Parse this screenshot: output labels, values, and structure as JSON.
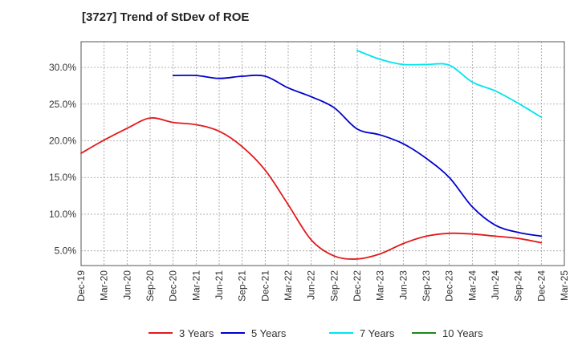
{
  "chart_data": {
    "type": "line",
    "title": "[3727]  Trend of StDev of ROE",
    "xlabel": "",
    "ylabel": "",
    "x": [
      "Dec-19",
      "Mar-20",
      "Jun-20",
      "Sep-20",
      "Dec-20",
      "Mar-21",
      "Jun-21",
      "Sep-21",
      "Dec-21",
      "Mar-22",
      "Jun-22",
      "Sep-22",
      "Dec-22",
      "Mar-23",
      "Jun-23",
      "Sep-23",
      "Dec-23",
      "Mar-24",
      "Jun-24",
      "Sep-24",
      "Dec-24"
    ],
    "x_ticks": [
      "Dec-19",
      "Mar-20",
      "Jun-20",
      "Sep-20",
      "Dec-20",
      "Mar-21",
      "Jun-21",
      "Sep-21",
      "Dec-21",
      "Mar-22",
      "Jun-22",
      "Sep-22",
      "Dec-22",
      "Mar-23",
      "Jun-23",
      "Sep-23",
      "Dec-23",
      "Mar-24",
      "Jun-24",
      "Sep-24",
      "Dec-24",
      "Mar-25"
    ],
    "y_ticks": [
      "5.0%",
      "10.0%",
      "15.0%",
      "20.0%",
      "25.0%",
      "30.0%"
    ],
    "ylim": [
      3.0,
      33.5
    ],
    "grid": true,
    "legend_position": "bottom",
    "series": [
      {
        "name": "3 Years",
        "color": "#e31a1c",
        "values": [
          18.3,
          20.1,
          21.7,
          23.1,
          22.5,
          22.2,
          21.3,
          19.2,
          16.0,
          11.3,
          6.5,
          4.3,
          3.9,
          4.6,
          6.0,
          7.0,
          7.4,
          7.3,
          7.0,
          6.7,
          6.1
        ]
      },
      {
        "name": "5 Years",
        "color": "#0000cc",
        "values": [
          null,
          null,
          null,
          null,
          28.9,
          28.9,
          28.5,
          28.8,
          28.8,
          27.2,
          26.0,
          24.5,
          21.6,
          20.8,
          19.6,
          17.6,
          15.0,
          11.0,
          8.5,
          7.5,
          7.0
        ]
      },
      {
        "name": "7 Years",
        "color": "#00e5ee",
        "values": [
          null,
          null,
          null,
          null,
          null,
          null,
          null,
          null,
          null,
          null,
          null,
          null,
          32.3,
          31.1,
          30.4,
          30.4,
          30.3,
          28.0,
          26.8,
          25.1,
          23.2
        ]
      },
      {
        "name": "10 Years",
        "color": "#1a8a1a",
        "values": [
          null,
          null,
          null,
          null,
          null,
          null,
          null,
          null,
          null,
          null,
          null,
          null,
          null,
          null,
          null,
          null,
          null,
          null,
          null,
          null,
          null
        ]
      }
    ]
  }
}
